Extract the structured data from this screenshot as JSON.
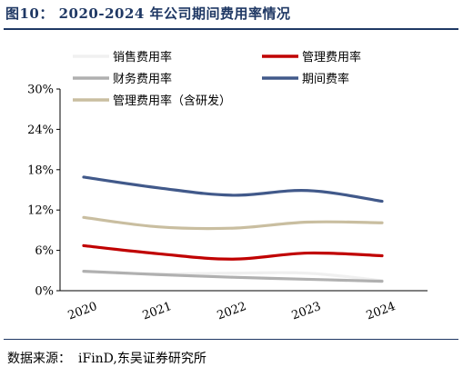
{
  "title": "图10：  2020-2024 年公司期间费用率情况",
  "source": {
    "label": "数据来源：",
    "text": "iFinD,东吴证券研究所"
  },
  "chart_data": {
    "type": "line",
    "x": [
      "2020",
      "2021",
      "2022",
      "2023",
      "2024"
    ],
    "ylim": [
      0,
      30
    ],
    "yticks": [
      0,
      6,
      12,
      18,
      24,
      30
    ],
    "ytick_labels": [
      "0%",
      "6%",
      "12%",
      "18%",
      "24%",
      "30%"
    ],
    "legend_position": "top",
    "grid": false,
    "series": [
      {
        "name": "销售费用率",
        "color": "#f0f0f0",
        "values": [
          2.8,
          2.5,
          2.6,
          2.6,
          1.5
        ]
      },
      {
        "name": "管理费用率",
        "color": "#c00000",
        "values": [
          6.7,
          5.5,
          4.7,
          5.6,
          5.2
        ]
      },
      {
        "name": "财务费用率",
        "color": "#b0b0b0",
        "values": [
          2.9,
          2.4,
          2.0,
          1.7,
          1.4
        ]
      },
      {
        "name": "期间费率",
        "color": "#41598a",
        "values": [
          16.9,
          15.3,
          14.2,
          14.9,
          13.3
        ]
      },
      {
        "name": "管理费用率（含研发）",
        "color": "#c9bea0",
        "values": [
          10.9,
          9.5,
          9.3,
          10.2,
          10.1
        ]
      }
    ]
  }
}
